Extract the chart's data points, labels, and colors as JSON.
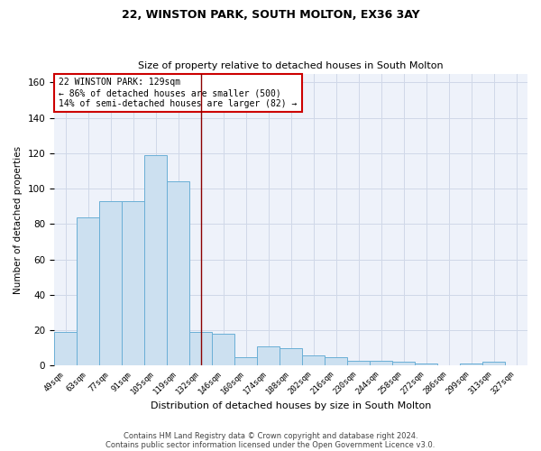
{
  "title": "22, WINSTON PARK, SOUTH MOLTON, EX36 3AY",
  "subtitle": "Size of property relative to detached houses in South Molton",
  "xlabel": "Distribution of detached houses by size in South Molton",
  "ylabel": "Number of detached properties",
  "categories": [
    "49sqm",
    "63sqm",
    "77sqm",
    "91sqm",
    "105sqm",
    "119sqm",
    "132sqm",
    "146sqm",
    "160sqm",
    "174sqm",
    "188sqm",
    "202sqm",
    "216sqm",
    "230sqm",
    "244sqm",
    "258sqm",
    "272sqm",
    "286sqm",
    "299sqm",
    "313sqm",
    "327sqm"
  ],
  "values": [
    19,
    84,
    93,
    93,
    119,
    104,
    19,
    18,
    5,
    11,
    10,
    6,
    5,
    3,
    3,
    2,
    1,
    0,
    1,
    2,
    0
  ],
  "bar_color": "#cce0f0",
  "bar_edge_color": "#6aafd6",
  "grid_color": "#d0d8e8",
  "background_color": "#eef2fa",
  "vline_x": 6.0,
  "vline_color": "#8b0000",
  "annotation_text": "22 WINSTON PARK: 129sqm\n← 86% of detached houses are smaller (500)\n14% of semi-detached houses are larger (82) →",
  "annotation_box_color": "#ffffff",
  "annotation_box_edge": "#cc0000",
  "ylim": [
    0,
    165
  ],
  "yticks": [
    0,
    20,
    40,
    60,
    80,
    100,
    120,
    140,
    160
  ],
  "title_fontsize": 9,
  "subtitle_fontsize": 8,
  "footer1": "Contains HM Land Registry data © Crown copyright and database right 2024.",
  "footer2": "Contains public sector information licensed under the Open Government Licence v3.0."
}
